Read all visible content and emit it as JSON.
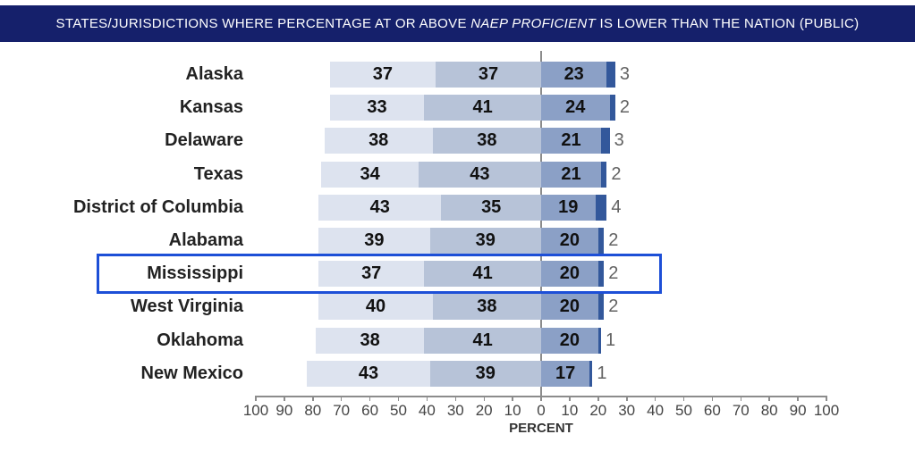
{
  "header": {
    "title_prefix": "STATES/JURISDICTIONS WHERE PERCENTAGE AT OR ABOVE ",
    "title_emphasis": "NAEP PROFICIENT",
    "title_suffix": " IS LOWER THAN THE NATION (PUBLIC)"
  },
  "chart_data": {
    "type": "bar",
    "variant": "horizontal-diverging-stacked",
    "title": "STATES/JURISDICTIONS WHERE PERCENTAGE AT OR ABOVE NAEP PROFICIENT IS LOWER THAN THE NATION (PUBLIC)",
    "categories": [
      "Alaska",
      "Kansas",
      "Delaware",
      "Texas",
      "District of Columbia",
      "Alabama",
      "Mississippi",
      "West Virginia",
      "Oklahoma",
      "New Mexico"
    ],
    "series": [
      {
        "name": "left-outer-segment",
        "side": "left",
        "color": "#dde3ef",
        "values": [
          37,
          33,
          38,
          34,
          43,
          39,
          37,
          40,
          38,
          43
        ]
      },
      {
        "name": "left-inner-segment",
        "side": "left",
        "color": "#b7c3d8",
        "values": [
          37,
          41,
          38,
          43,
          35,
          39,
          41,
          38,
          41,
          39
        ]
      },
      {
        "name": "right-inner-segment",
        "side": "right",
        "color": "#8ba0c6",
        "values": [
          23,
          24,
          21,
          21,
          19,
          20,
          20,
          20,
          20,
          17
        ]
      },
      {
        "name": "right-outer-segment",
        "side": "right",
        "color": "#33589b",
        "values": [
          3,
          2,
          3,
          2,
          4,
          2,
          2,
          2,
          1,
          1
        ]
      }
    ],
    "highlighted_category": "Mississippi",
    "axis": {
      "label": "PERCENT",
      "tick_labels": [
        "100",
        "90",
        "80",
        "70",
        "60",
        "50",
        "40",
        "30",
        "20",
        "10",
        "0",
        "10",
        "20",
        "30",
        "40",
        "50",
        "60",
        "70",
        "80",
        "90",
        "100"
      ],
      "range": [
        -100,
        100
      ],
      "grid": false
    },
    "colors": {
      "header_bg": "#15206b",
      "header_text": "#ffffff",
      "highlight_border": "#1d4fd7",
      "axis": "#8c8c8c",
      "value_in_bar": "#111111",
      "value_outside": "#636363",
      "category_label": "#222222"
    }
  }
}
